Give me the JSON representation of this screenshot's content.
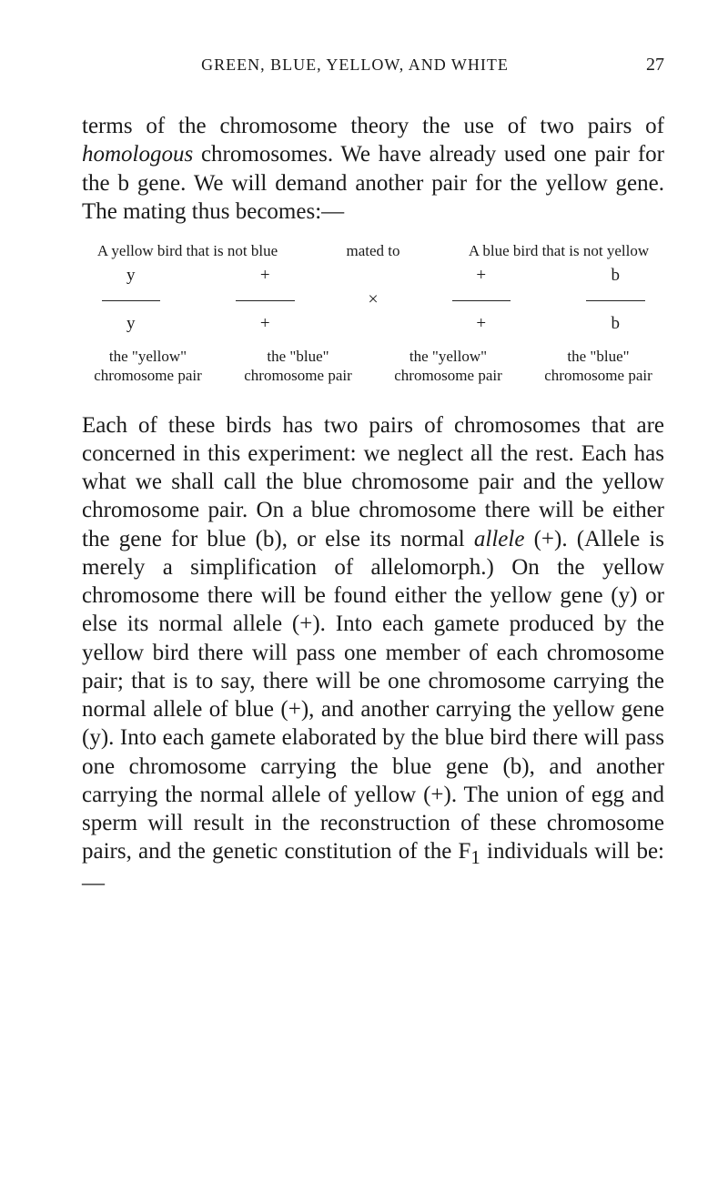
{
  "header": {
    "running_head": "GREEN, BLUE, YELLOW, AND WHITE",
    "page_number": "27"
  },
  "para1": "terms of the chromosome theory the use of two pairs of homologous chromosomes. We have already used one pair for the b gene. We will demand another pair for the yellow gene. The mating thus becomes:—",
  "cross": {
    "heading_left": "A yellow bird that is not blue",
    "heading_mid": "mated to",
    "heading_right": "A blue bird that is not yellow",
    "r1c1": "y",
    "r1c2": "+",
    "r1c3": "+",
    "r1c4": "b",
    "times": "×",
    "r2c1": "y",
    "r2c2": "+",
    "r2c3": "+",
    "r2c4": "b",
    "label1": "the \"yellow\" chromosome pair",
    "label2": "the \"blue\" chromosome pair",
    "label3": "the \"yellow\" chromosome pair",
    "label4": "the \"blue\" chromosome pair"
  },
  "para2": "Each of these birds has two pairs of chromosomes that are concerned in this experiment: we neglect all the rest. Each has what we shall call the blue chromosome pair and the yellow chromosome pair. On a blue chromosome there will be either the gene for blue (b), or else its normal allele (+). (Allele is merely a simplification of allelomorph.) On the yellow chromosome there will be found either the yellow gene (y) or else its normal allele (+). Into each gamete produced by the yellow bird there will pass one member of each chromosome pair; that is to say, there will be one chromosome carrying the normal allele of blue (+), and another carrying the yellow gene (y). Into each gamete elaborated by the blue bird there will pass one chromosome carrying the blue gene (b), and another carrying the normal allele of yellow (+). The union of egg and sperm will result in the reconstruction of these chromosome pairs, and the genetic constitution of the F₁ individuals will be:—"
}
